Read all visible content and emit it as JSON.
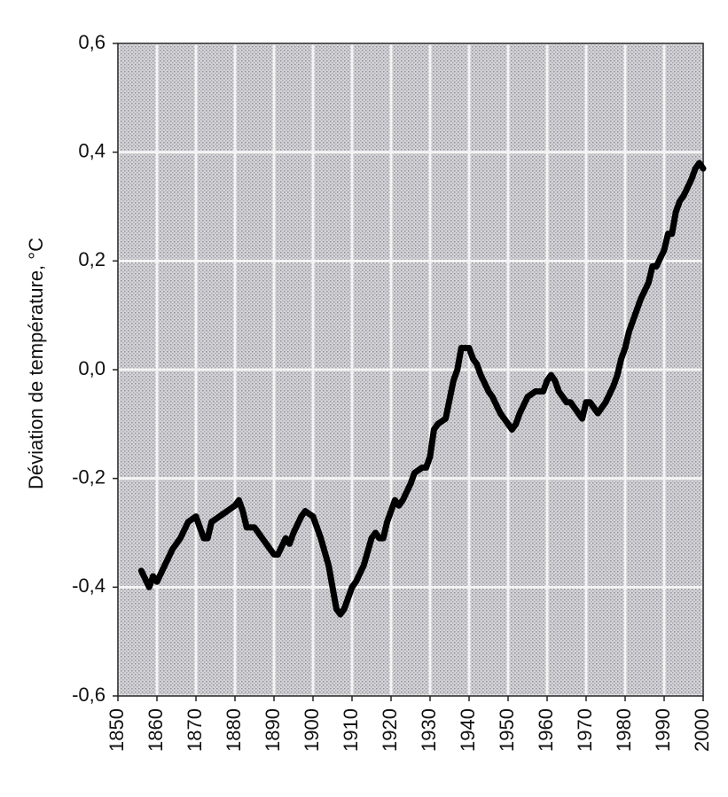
{
  "chart_data": {
    "type": "line",
    "y_label": "Déviation de température, °C",
    "x": [
      1856,
      1858,
      1859,
      1860,
      1862,
      1864,
      1866,
      1868,
      1870,
      1871,
      1872,
      1873,
      1874,
      1876,
      1878,
      1880,
      1881,
      1882,
      1883,
      1885,
      1886,
      1888,
      1890,
      1891,
      1893,
      1894,
      1895,
      1897,
      1898,
      1900,
      1902,
      1904,
      1906,
      1907,
      1908,
      1910,
      1911,
      1913,
      1915,
      1916,
      1917,
      1918,
      1919,
      1920,
      1921,
      1922,
      1923,
      1925,
      1926,
      1928,
      1929,
      1930,
      1931,
      1932,
      1934,
      1936,
      1937,
      1938,
      1940,
      1941,
      1942,
      1943,
      1945,
      1946,
      1948,
      1950,
      1951,
      1952,
      1953,
      1955,
      1957,
      1959,
      1960,
      1961,
      1962,
      1963,
      1965,
      1966,
      1968,
      1969,
      1970,
      1971,
      1972,
      1973,
      1975,
      1977,
      1978,
      1979,
      1980,
      1981,
      1982,
      1984,
      1986,
      1987,
      1988,
      1990,
      1991,
      1992,
      1993,
      1994,
      1995,
      1997,
      1998,
      1999,
      2000
    ],
    "series": [
      {
        "color": "#000000",
        "values": [
          -0.37,
          -0.4,
          -0.38,
          -0.39,
          -0.36,
          -0.33,
          -0.31,
          -0.28,
          -0.27,
          -0.29,
          -0.31,
          -0.31,
          -0.28,
          -0.27,
          -0.26,
          -0.25,
          -0.24,
          -0.26,
          -0.29,
          -0.29,
          -0.3,
          -0.32,
          -0.34,
          -0.34,
          -0.31,
          -0.32,
          -0.3,
          -0.27,
          -0.26,
          -0.27,
          -0.31,
          -0.36,
          -0.44,
          -0.45,
          -0.44,
          -0.4,
          -0.39,
          -0.36,
          -0.31,
          -0.3,
          -0.31,
          -0.31,
          -0.28,
          -0.26,
          -0.24,
          -0.25,
          -0.24,
          -0.21,
          -0.19,
          -0.18,
          -0.18,
          -0.16,
          -0.11,
          -0.1,
          -0.09,
          -0.02,
          0.0,
          0.04,
          0.04,
          0.02,
          0.01,
          -0.01,
          -0.04,
          -0.05,
          -0.08,
          -0.1,
          -0.11,
          -0.1,
          -0.08,
          -0.05,
          -0.04,
          -0.04,
          -0.02,
          -0.01,
          -0.02,
          -0.04,
          -0.06,
          -0.06,
          -0.08,
          -0.09,
          -0.06,
          -0.06,
          -0.07,
          -0.08,
          -0.06,
          -0.03,
          -0.01,
          0.02,
          0.04,
          0.07,
          0.09,
          0.13,
          0.16,
          0.19,
          0.19,
          0.22,
          0.25,
          0.25,
          0.29,
          0.31,
          0.32,
          0.35,
          0.37,
          0.38,
          0.37
        ]
      }
    ],
    "xlim": [
      1850,
      2000
    ],
    "xticks": [
      1850,
      1860,
      1870,
      1880,
      1890,
      1900,
      1910,
      1920,
      1930,
      1940,
      1950,
      1960,
      1970,
      1980,
      1990,
      2000
    ],
    "ylim": [
      -0.6,
      0.6
    ],
    "yticks": [
      {
        "value": -0.6,
        "label": "-0,6"
      },
      {
        "value": -0.4,
        "label": "-0,4"
      },
      {
        "value": -0.2,
        "label": "-0,2"
      },
      {
        "value": 0,
        "label": "0,0"
      },
      {
        "value": 0.2,
        "label": "0,2"
      },
      {
        "value": 0.4,
        "label": "0,4"
      },
      {
        "value": 0.6,
        "label": "0,6"
      }
    ],
    "grid": true
  }
}
